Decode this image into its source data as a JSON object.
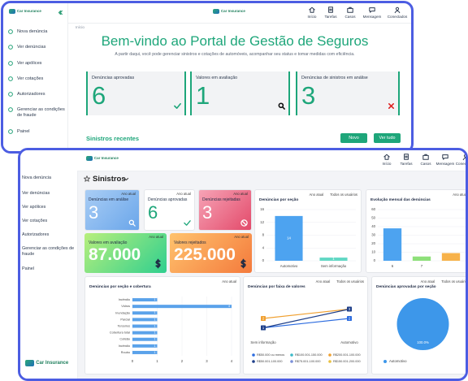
{
  "back_window": {
    "logo": "Car Insurance",
    "sidebar": [
      "Nova denúncia",
      "Ver denúncias",
      "Ver apólices",
      "Ver cotações",
      "Autorizadores",
      "Gerenciar as condições de fraude",
      "Painel"
    ],
    "nav": [
      "Início",
      "Tarefas",
      "Casos",
      "Mensagem",
      "Conectados"
    ],
    "breadcrumb": "Início",
    "title": "Bem-vindo ao Portal de Gestão de Seguros",
    "subtitle": "A partir daqui, você pode gerenciar sinistros e cotações de automóveis, acompanhar seu status e tomar medidas com eficiência.",
    "cards": [
      {
        "label": "Denúncias aprovadas",
        "value": 6
      },
      {
        "label": "Valores em avaliação",
        "value": 1
      },
      {
        "label": "Denúncias de sinistros em análise",
        "value": 3
      }
    ],
    "section_title": "Sinistros recentes",
    "buttons": [
      "Novo",
      "Ver tudo"
    ]
  },
  "front_window": {
    "logo": "Car Insurance",
    "sidebar": [
      "Nova denúncia",
      "Ver denúncias",
      "Ver apólices",
      "Ver cotações",
      "Autorizadores",
      "Gerenciar as condições de fraude",
      "Painel"
    ],
    "nav": [
      "Início",
      "Tarefas",
      "Casos",
      "Mensagem",
      "Conectados"
    ],
    "title": "Sinistros",
    "stat_cards": [
      {
        "label": "Denúncias em análise",
        "filter": "Ano atual",
        "value": 3
      },
      {
        "label": "Denúncias aprovadas",
        "filter": "Ano atual",
        "value": 6
      },
      {
        "label": "Denúncias rejeitadas",
        "filter": "Ano atual",
        "value": 3
      }
    ],
    "value_cards": [
      {
        "label": "Valores em avaliação",
        "filter": "Ano atual",
        "value": 87000,
        "value_label": "87.000"
      },
      {
        "label": "Valores rejeitados",
        "filter": "Ano atual",
        "value": 225000,
        "value_label": "225.000"
      }
    ],
    "charts": [
      {
        "type": "bar",
        "title": "Denúncias por seção",
        "filters": [
          "Ano atual",
          "Todos os usuários"
        ],
        "categories": [
          "Automotivo",
          "Sem informação"
        ],
        "values": [
          14,
          1
        ],
        "colors": [
          "#4da3f0",
          "#62d8c4"
        ],
        "ylim": [
          0,
          16
        ],
        "yticks": [
          0,
          4,
          8,
          12,
          16
        ],
        "value_labels_shown": true
      },
      {
        "type": "bar",
        "title": "Evolução mensal das denúncias",
        "filters": [
          "Ano atual"
        ],
        "categories": [
          "6",
          "7",
          null
        ],
        "values": [
          38,
          5,
          9
        ],
        "colors": [
          "#4da3f0",
          "#8ee07a",
          "#f7b24a"
        ],
        "ylim": [
          0,
          60
        ],
        "yticks": [
          0,
          10,
          20,
          30,
          40,
          50,
          60
        ],
        "value_labels_shown": false
      },
      {
        "type": "hbar",
        "title": "Denúncias por seção e cobertura",
        "filters": [
          "Ano atual"
        ],
        "categories": [
          "Incêndio",
          "Vidros",
          "Inundação",
          "Parcial",
          "Terceiros",
          "Cobertura total",
          "Colisão",
          "Incêndio",
          "Roubo"
        ],
        "values": [
          1,
          4,
          1,
          1,
          1,
          1,
          1,
          1,
          1
        ],
        "color": "#5aa2ea",
        "xlim": [
          0,
          4
        ],
        "xticks": [
          0,
          1,
          2,
          3,
          4
        ]
      },
      {
        "type": "line",
        "title": "Denúncias por faixa de valores",
        "filters": [
          "Ano atual",
          "Todos os usuários"
        ],
        "categories": [
          "Sem informação",
          "Automotivo"
        ],
        "ylim": [
          0,
          4
        ],
        "series": [
          {
            "name": "R$50.000 ou menos",
            "color": "#2d6cdf",
            "values": [
              1,
              2
            ]
          },
          {
            "name": "R$100.001-150.000",
            "color": "#3bb9c8",
            "values": [
              null,
              null
            ]
          },
          {
            "name": "R$200.001-100.000",
            "color": "#f0a030",
            "values": [
              2,
              3
            ]
          },
          {
            "name": "R$50.001-100.000",
            "color": "#1e3f8a",
            "values": [
              1,
              3
            ]
          },
          {
            "name": "R$75.001-100.000",
            "color": "#7a8fd8",
            "values": [
              null,
              null
            ]
          },
          {
            "name": "R$150.001-200.000",
            "color": "#e8c040",
            "values": [
              null,
              null
            ]
          }
        ]
      },
      {
        "type": "pie",
        "title": "Denúncias aprovadas por seção",
        "filters": [
          "Ano atual",
          "Todos os usuários"
        ],
        "categories": [
          "Automotivo"
        ],
        "values": [
          100
        ],
        "value_labels": [
          "100.0%"
        ],
        "colors": [
          "#3d97ea"
        ]
      }
    ]
  }
}
